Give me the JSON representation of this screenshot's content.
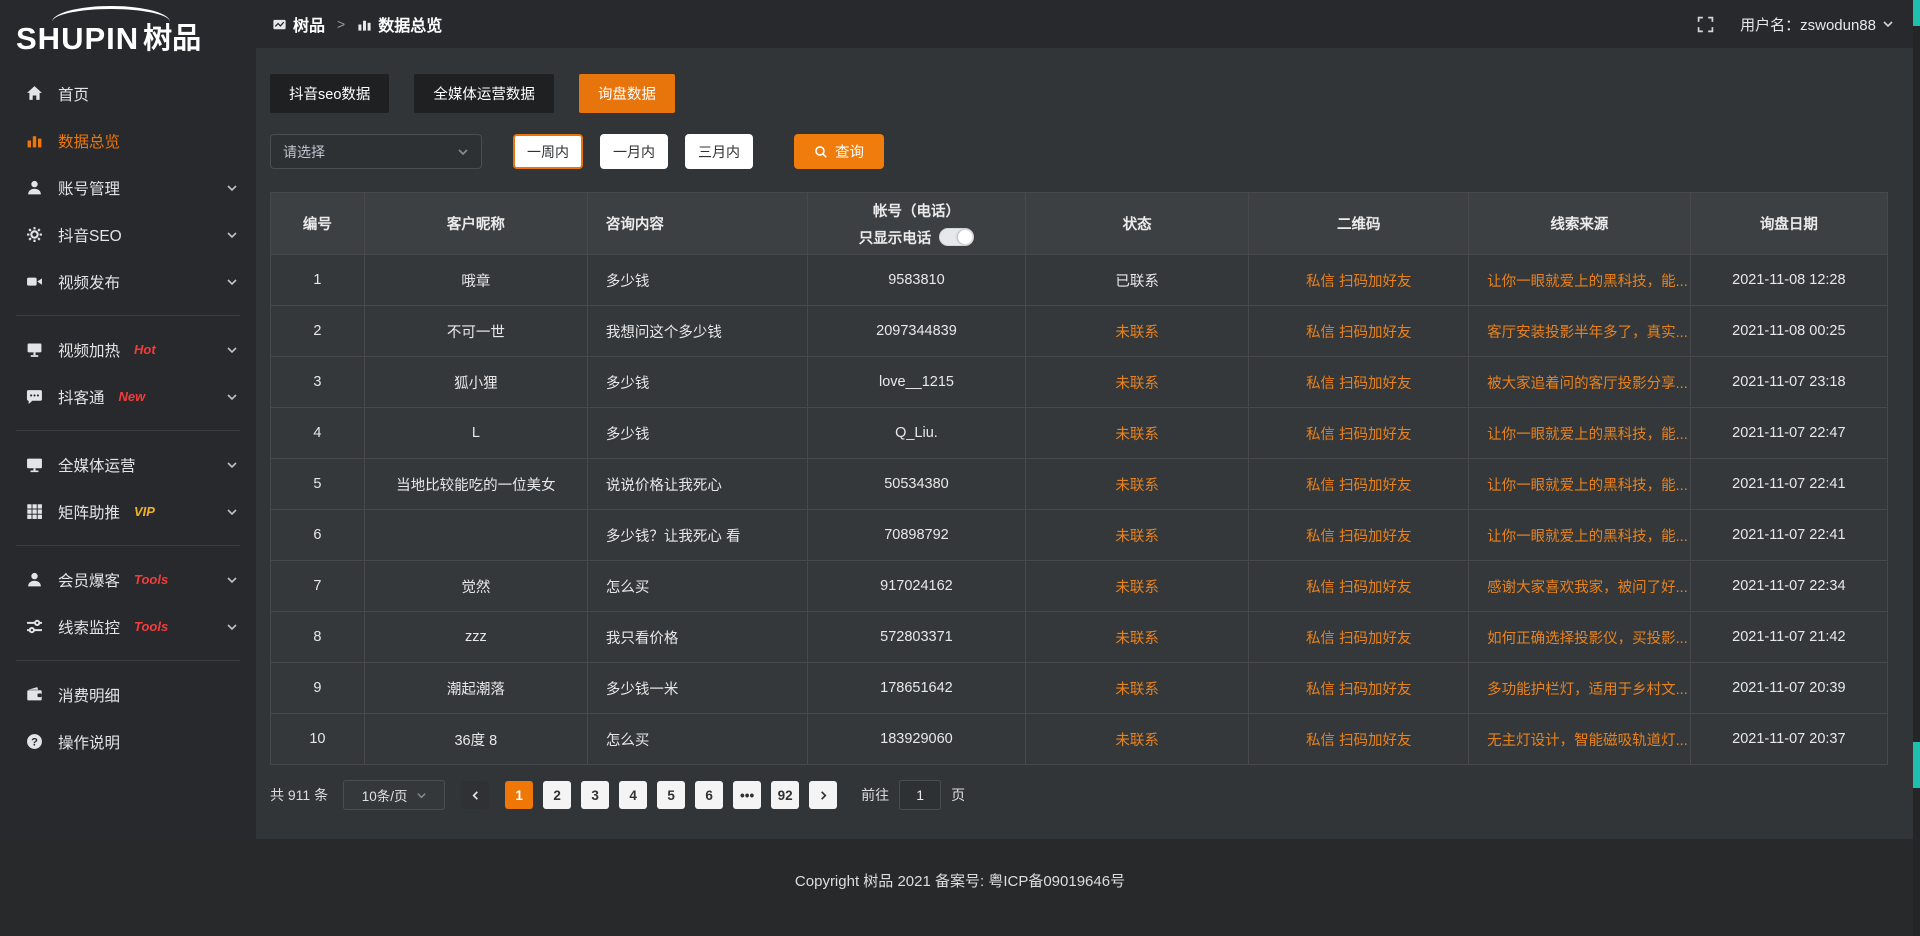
{
  "colors": {
    "accent": "#e8740c",
    "link_orange": "#e8821e",
    "badge_red": "#f23c3c",
    "badge_gold": "#efb32a"
  },
  "sidebar": {
    "logo": {
      "en": "SHUPIN",
      "cn": "树品"
    },
    "items": [
      {
        "name": "home",
        "label": "首页",
        "icon": "home-icon",
        "active": false,
        "chevron": false,
        "badge": "",
        "divider_after": false
      },
      {
        "name": "data-overview",
        "label": "数据总览",
        "icon": "chart-icon",
        "active": true,
        "chevron": false,
        "badge": "",
        "divider_after": false
      },
      {
        "name": "account-management",
        "label": "账号管理",
        "icon": "user-icon",
        "active": false,
        "chevron": true,
        "badge": "",
        "divider_after": false
      },
      {
        "name": "douyin-seo",
        "label": "抖音SEO",
        "icon": "gear-icon",
        "active": false,
        "chevron": true,
        "badge": "",
        "divider_after": false
      },
      {
        "name": "video-publish",
        "label": "视频发布",
        "icon": "video-icon",
        "active": false,
        "chevron": true,
        "badge": "",
        "divider_after": true
      },
      {
        "name": "video-heating",
        "label": "视频加热",
        "icon": "display-icon",
        "active": false,
        "chevron": true,
        "badge": "Hot",
        "badge_color": "red",
        "divider_after": false
      },
      {
        "name": "douketong",
        "label": "抖客通",
        "icon": "chat-icon",
        "active": false,
        "chevron": true,
        "badge": "New",
        "badge_color": "red",
        "divider_after": true
      },
      {
        "name": "omnimedia-operation",
        "label": "全媒体运营",
        "icon": "monitor-icon",
        "active": false,
        "chevron": true,
        "badge": "",
        "divider_after": false
      },
      {
        "name": "matrix-boost",
        "label": "矩阵助推",
        "icon": "grid-icon",
        "active": false,
        "chevron": true,
        "badge": "VIP",
        "badge_color": "gold",
        "divider_after": true
      },
      {
        "name": "member-baoke",
        "label": "会员爆客",
        "icon": "member-icon",
        "active": false,
        "chevron": true,
        "badge": "Tools",
        "badge_color": "red",
        "divider_after": false
      },
      {
        "name": "lead-monitoring",
        "label": "线索监控",
        "icon": "filter-icon",
        "active": false,
        "chevron": true,
        "badge": "Tools",
        "badge_color": "red",
        "divider_after": true
      },
      {
        "name": "consumption-details",
        "label": "消费明细",
        "icon": "wallet-icon",
        "active": false,
        "chevron": false,
        "badge": "",
        "divider_after": false
      },
      {
        "name": "operation-guide",
        "label": "操作说明",
        "icon": "question-icon",
        "active": false,
        "chevron": false,
        "badge": "",
        "divider_after": false
      }
    ]
  },
  "header": {
    "breadcrumb": [
      {
        "icon": "app-icon",
        "label": "树品"
      },
      {
        "icon": "chart-icon",
        "label": "数据总览"
      }
    ],
    "separator": ">",
    "username": "用户名：zswodun88"
  },
  "tabs": [
    {
      "label": "抖音seo数据",
      "active": false
    },
    {
      "label": "全媒体运营数据",
      "active": false
    },
    {
      "label": "询盘数据",
      "active": true
    }
  ],
  "filters": {
    "select_placeholder": "请选择",
    "ranges": [
      {
        "label": "一周内",
        "active": true
      },
      {
        "label": "一月内",
        "active": false
      },
      {
        "label": "三月内",
        "active": false
      }
    ],
    "search_label": "查询"
  },
  "table": {
    "columns": [
      "编号",
      "客户昵称",
      "咨询内容",
      "帐号（电话）",
      "状态",
      "二维码",
      "线索来源",
      "询盘日期"
    ],
    "phone_toggle_label": "只显示电话",
    "rows": [
      {
        "id": "1",
        "nickname": "哦章",
        "content": "多少钱",
        "account": "9583810",
        "status": "已联系",
        "contacted": true,
        "qrcode": "私信 扫码加好友",
        "source": "让你一眼就爱上的黑科技，能...",
        "date": "2021-11-08 12:28"
      },
      {
        "id": "2",
        "nickname": "不可一世",
        "content": "我想问这个多少钱",
        "account": "2097344839",
        "status": "未联系",
        "contacted": false,
        "qrcode": "私信 扫码加好友",
        "source": "客厅安装投影半年多了，真实...",
        "date": "2021-11-08 00:25"
      },
      {
        "id": "3",
        "nickname": "狐小狸",
        "content": "多少钱",
        "account": "love__1215",
        "status": "未联系",
        "contacted": false,
        "qrcode": "私信 扫码加好友",
        "source": "被大家追着问的客厅投影分享...",
        "date": "2021-11-07 23:18"
      },
      {
        "id": "4",
        "nickname": "L",
        "content": "多少钱",
        "account": "Q_Liu.",
        "status": "未联系",
        "contacted": false,
        "qrcode": "私信 扫码加好友",
        "source": "让你一眼就爱上的黑科技，能...",
        "date": "2021-11-07 22:47"
      },
      {
        "id": "5",
        "nickname": "当地比较能吃的一位美女",
        "content": "说说价格让我死心",
        "account": "50534380",
        "status": "未联系",
        "contacted": false,
        "qrcode": "私信 扫码加好友",
        "source": "让你一眼就爱上的黑科技，能...",
        "date": "2021-11-07 22:41"
      },
      {
        "id": "6",
        "nickname": "",
        "content": "多少钱？让我死心 看",
        "account": "70898792",
        "status": "未联系",
        "contacted": false,
        "qrcode": "私信 扫码加好友",
        "source": "让你一眼就爱上的黑科技，能...",
        "date": "2021-11-07 22:41"
      },
      {
        "id": "7",
        "nickname": "觉然",
        "content": "怎么买",
        "account": "917024162",
        "status": "未联系",
        "contacted": false,
        "qrcode": "私信 扫码加好友",
        "source": "感谢大家喜欢我家，被问了好...",
        "date": "2021-11-07 22:34"
      },
      {
        "id": "8",
        "nickname": "zzz",
        "content": "我只看价格",
        "account": "572803371",
        "status": "未联系",
        "contacted": false,
        "qrcode": "私信 扫码加好友",
        "source": "如何正确选择投影仪，买投影...",
        "date": "2021-11-07 21:42"
      },
      {
        "id": "9",
        "nickname": "潮起潮落",
        "content": "多少钱一米",
        "account": "178651642",
        "status": "未联系",
        "contacted": false,
        "qrcode": "私信 扫码加好友",
        "source": "多功能护栏灯，适用于乡村文...",
        "date": "2021-11-07 20:39"
      },
      {
        "id": "10",
        "nickname": "36度 8",
        "content": "怎么买",
        "account": "183929060",
        "status": "未联系",
        "contacted": false,
        "qrcode": "私信 扫码加好友",
        "source": "无主灯设计，智能磁吸轨道灯...",
        "date": "2021-11-07 20:37"
      }
    ]
  },
  "pagination": {
    "total": "共 911 条",
    "page_size": "10条/页",
    "pages": [
      "1",
      "2",
      "3",
      "4",
      "5",
      "6",
      "...",
      "92"
    ],
    "active_page": "1",
    "goto_label": "前往",
    "goto_value": "1",
    "page_label": "页"
  },
  "footer": {
    "copyright": "Copyright 树品 2021 备案号: 粤ICP备09019646号"
  }
}
